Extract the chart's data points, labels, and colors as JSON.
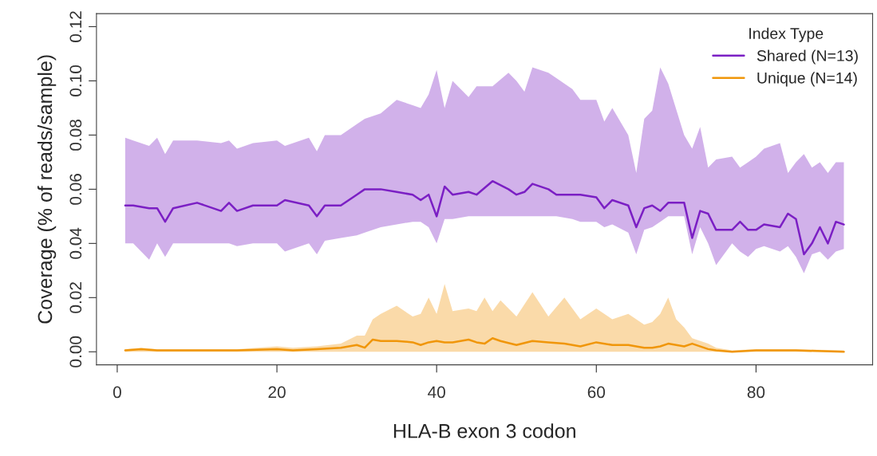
{
  "chart_data": {
    "type": "line",
    "xlabel": "HLA-B exon 3 codon",
    "ylabel": "Coverage (% of reads/sample)",
    "legend_title": "Index Type",
    "legend": "top right",
    "grid": false,
    "marker": "none",
    "line_style": "solid",
    "xlim": [
      -2.6,
      94.6
    ],
    "xticks": [
      0,
      20,
      40,
      60,
      80
    ],
    "ylim": [
      -0.0048,
      0.1248
    ],
    "yticks": [
      {
        "value": 0,
        "label": "0.00"
      },
      {
        "value": 0.02,
        "label": "0.02"
      },
      {
        "value": 0.04,
        "label": "0.04"
      },
      {
        "value": 0.06,
        "label": "0.06"
      },
      {
        "value": 0.08,
        "label": "0.08"
      },
      {
        "value": 0.1,
        "label": "0.10"
      },
      {
        "value": 0.12,
        "label": "0.12"
      }
    ],
    "series": [
      {
        "name": "Shared (N=13)",
        "color": "#7b1fc4",
        "x": [
          1,
          2,
          4,
          5,
          6,
          7,
          10,
          13,
          14,
          15,
          17,
          20,
          21,
          24,
          25,
          26,
          28,
          30,
          31,
          33,
          35,
          37,
          38,
          39,
          40,
          41,
          42,
          44,
          45,
          47,
          49,
          50,
          51,
          52,
          54,
          55,
          57,
          58,
          60,
          61,
          62,
          64,
          65,
          66,
          67,
          68,
          69,
          71,
          72,
          73,
          74,
          75,
          77,
          78,
          79,
          80,
          81,
          83,
          84,
          85,
          86,
          87,
          88,
          89,
          90,
          91
        ],
        "values": [
          0.054,
          0.054,
          0.053,
          0.053,
          0.048,
          0.053,
          0.055,
          0.052,
          0.055,
          0.052,
          0.054,
          0.054,
          0.056,
          0.054,
          0.05,
          0.054,
          0.054,
          0.058,
          0.06,
          0.06,
          0.059,
          0.058,
          0.056,
          0.058,
          0.05,
          0.061,
          0.058,
          0.059,
          0.058,
          0.063,
          0.06,
          0.058,
          0.059,
          0.062,
          0.06,
          0.058,
          0.058,
          0.058,
          0.057,
          0.053,
          0.056,
          0.054,
          0.046,
          0.053,
          0.054,
          0.052,
          0.055,
          0.055,
          0.042,
          0.052,
          0.051,
          0.045,
          0.045,
          0.048,
          0.045,
          0.045,
          0.047,
          0.046,
          0.051,
          0.049,
          0.036,
          0.04,
          0.046,
          0.04,
          0.048,
          0.047
        ],
        "lower": [
          0.04,
          0.04,
          0.034,
          0.04,
          0.035,
          0.04,
          0.04,
          0.04,
          0.04,
          0.039,
          0.04,
          0.04,
          0.037,
          0.04,
          0.036,
          0.041,
          0.042,
          0.043,
          0.044,
          0.046,
          0.047,
          0.048,
          0.048,
          0.046,
          0.04,
          0.049,
          0.049,
          0.05,
          0.05,
          0.05,
          0.05,
          0.05,
          0.05,
          0.05,
          0.05,
          0.05,
          0.049,
          0.048,
          0.048,
          0.046,
          0.047,
          0.044,
          0.036,
          0.045,
          0.046,
          0.048,
          0.05,
          0.05,
          0.036,
          0.046,
          0.04,
          0.032,
          0.04,
          0.037,
          0.035,
          0.038,
          0.039,
          0.037,
          0.039,
          0.035,
          0.029,
          0.036,
          0.037,
          0.034,
          0.037,
          0.038
        ],
        "upper": [
          0.079,
          0.078,
          0.076,
          0.079,
          0.073,
          0.078,
          0.078,
          0.077,
          0.078,
          0.075,
          0.077,
          0.078,
          0.076,
          0.079,
          0.074,
          0.08,
          0.08,
          0.084,
          0.086,
          0.088,
          0.093,
          0.091,
          0.09,
          0.095,
          0.104,
          0.09,
          0.1,
          0.094,
          0.098,
          0.098,
          0.103,
          0.1,
          0.096,
          0.105,
          0.103,
          0.101,
          0.097,
          0.093,
          0.093,
          0.085,
          0.09,
          0.08,
          0.066,
          0.086,
          0.089,
          0.105,
          0.099,
          0.08,
          0.075,
          0.083,
          0.068,
          0.071,
          0.072,
          0.068,
          0.07,
          0.072,
          0.075,
          0.077,
          0.066,
          0.07,
          0.073,
          0.068,
          0.07,
          0.066,
          0.07,
          0.07
        ]
      },
      {
        "name": "Unique (N=14)",
        "color": "#f0960a",
        "x": [
          1,
          3,
          5,
          10,
          15,
          20,
          22,
          25,
          28,
          30,
          31,
          32,
          33,
          35,
          37,
          38,
          39,
          40,
          41,
          42,
          44,
          45,
          46,
          47,
          48,
          50,
          52,
          54,
          56,
          58,
          60,
          62,
          64,
          66,
          67,
          68,
          69,
          70,
          71,
          72,
          74,
          75,
          77,
          80,
          85,
          91
        ],
        "values": [
          0.0005,
          0.001,
          0.0005,
          0.0005,
          0.0005,
          0.001,
          0.0005,
          0.001,
          0.0015,
          0.0025,
          0.0015,
          0.0045,
          0.004,
          0.004,
          0.0035,
          0.0025,
          0.0035,
          0.004,
          0.0035,
          0.0035,
          0.0045,
          0.0035,
          0.003,
          0.005,
          0.004,
          0.0025,
          0.004,
          0.0035,
          0.003,
          0.002,
          0.0035,
          0.0025,
          0.0025,
          0.0015,
          0.0015,
          0.002,
          0.003,
          0.0025,
          0.002,
          0.003,
          0.001,
          0.0005,
          0.0,
          0.0005,
          0.0005,
          0.0
        ],
        "lower": [
          0.0,
          0.0,
          0.0,
          0.0,
          0.0,
          0.0,
          0.0,
          0.0,
          0.0,
          0.0,
          0.0,
          0.0,
          0.0,
          0.0,
          0.0,
          0.0,
          0.0,
          0.0,
          0.0,
          0.0,
          0.0,
          0.0,
          0.0,
          0.0,
          0.0,
          0.0,
          0.0,
          0.0,
          0.0,
          0.0,
          0.0,
          0.0,
          0.0,
          0.0,
          0.0,
          0.0,
          0.0,
          0.0,
          0.0,
          0.0,
          0.0,
          0.0,
          0.0,
          0.0,
          0.0,
          0.0
        ],
        "upper": [
          0.001,
          0.0015,
          0.001,
          0.001,
          0.001,
          0.002,
          0.0015,
          0.002,
          0.003,
          0.006,
          0.006,
          0.012,
          0.014,
          0.017,
          0.013,
          0.014,
          0.02,
          0.014,
          0.025,
          0.015,
          0.016,
          0.015,
          0.02,
          0.015,
          0.019,
          0.013,
          0.022,
          0.013,
          0.02,
          0.012,
          0.016,
          0.012,
          0.014,
          0.01,
          0.011,
          0.014,
          0.02,
          0.012,
          0.009,
          0.005,
          0.003,
          0.0015,
          0.0005,
          0.001,
          0.001,
          0.0005
        ]
      }
    ]
  }
}
